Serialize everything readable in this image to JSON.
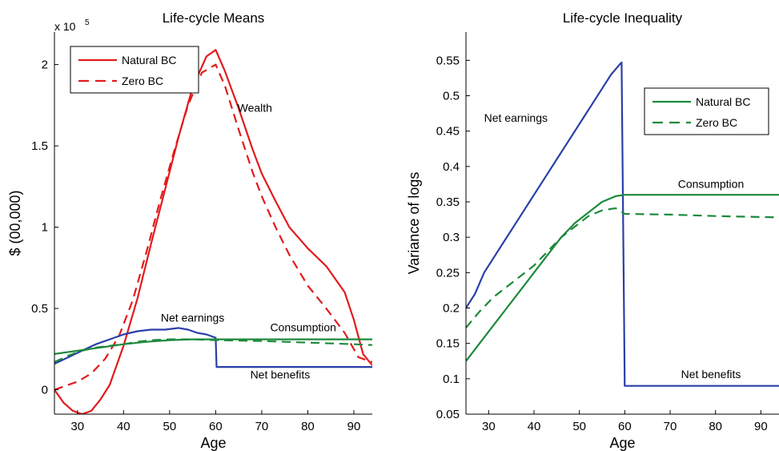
{
  "chart_data": [
    {
      "type": "line",
      "title": "Life-cycle Means",
      "xlabel": "Age",
      "ylabel": "$ (00,000)",
      "y_multiplier_label": "x 10",
      "y_multiplier_exp": "5",
      "xlim": [
        25,
        94
      ],
      "ylim": [
        -0.15,
        2.2
      ],
      "xticks": [
        30,
        40,
        50,
        60,
        70,
        80,
        90
      ],
      "yticks": [
        0,
        0.5,
        1,
        1.5,
        2
      ],
      "ytick_labels": [
        "0",
        "0.5",
        "1",
        "1.5",
        "2"
      ],
      "grid": false,
      "legend": {
        "placement": "top-left",
        "entries": [
          {
            "label": "Natural BC",
            "color": "#e31a1c",
            "dash": "solid"
          },
          {
            "label": "Zero BC",
            "color": "#e31a1c",
            "dash": "dashed"
          }
        ]
      },
      "annotations": [
        {
          "text": "Wealth",
          "x": 68.5,
          "y": 1.71
        },
        {
          "text": "Net earnings",
          "x": 55,
          "y": 0.42
        },
        {
          "text": "Consumption",
          "x": 79,
          "y": 0.36
        },
        {
          "text": "Net benefits",
          "x": 74,
          "y": 0.07
        }
      ],
      "series": [
        {
          "name": "Wealth",
          "color": "#e31a1c",
          "dash": "solid",
          "x": [
            25,
            27,
            29,
            31,
            33,
            35,
            37,
            40,
            43,
            46,
            49,
            52,
            55,
            58,
            60,
            62,
            65,
            68,
            70,
            73,
            76,
            80,
            84,
            88,
            90,
            92,
            94
          ],
          "y": [
            0,
            -0.08,
            -0.13,
            -0.15,
            -0.13,
            -0.06,
            0.03,
            0.27,
            0.56,
            0.9,
            1.23,
            1.56,
            1.86,
            2.05,
            2.09,
            1.96,
            1.73,
            1.48,
            1.33,
            1.16,
            1.0,
            0.87,
            0.76,
            0.6,
            0.43,
            0.22,
            0.15
          ]
        },
        {
          "name": "Wealth",
          "color": "#e31a1c",
          "dash": "dashed",
          "x": [
            25,
            27,
            30,
            33,
            36,
            39,
            42,
            45,
            48,
            51,
            54,
            57,
            60,
            62,
            65,
            68,
            70,
            73,
            76,
            80,
            84,
            88,
            91,
            94
          ],
          "y": [
            0,
            0.02,
            0.05,
            0.1,
            0.19,
            0.33,
            0.55,
            0.85,
            1.17,
            1.47,
            1.75,
            1.95,
            2.0,
            1.87,
            1.6,
            1.34,
            1.19,
            1.0,
            0.83,
            0.64,
            0.5,
            0.35,
            0.2,
            0.17
          ]
        },
        {
          "name": "Net earnings",
          "color": "#2b3fa8",
          "dash": "solid",
          "x": [
            25,
            28,
            31,
            34,
            37,
            40,
            43,
            46,
            49,
            52,
            54,
            56,
            58,
            60,
            60.2,
            94
          ],
          "y": [
            0.16,
            0.2,
            0.24,
            0.28,
            0.31,
            0.34,
            0.36,
            0.37,
            0.37,
            0.38,
            0.37,
            0.35,
            0.34,
            0.32,
            0.14,
            0.14
          ]
        },
        {
          "name": "Consumption",
          "color": "#1d8a3c",
          "dash": "solid",
          "x": [
            25,
            30,
            35,
            40,
            45,
            50,
            55,
            60,
            70,
            80,
            94
          ],
          "y": [
            0.22,
            0.24,
            0.26,
            0.28,
            0.295,
            0.305,
            0.31,
            0.31,
            0.31,
            0.31,
            0.31
          ]
        },
        {
          "name": "Consumption",
          "color": "#1d8a3c",
          "dash": "dashed",
          "x": [
            25,
            28,
            31,
            34,
            37,
            40,
            43,
            46,
            50,
            55,
            60,
            70,
            80,
            90,
            94
          ],
          "y": [
            0.17,
            0.21,
            0.24,
            0.26,
            0.27,
            0.28,
            0.295,
            0.305,
            0.31,
            0.31,
            0.305,
            0.3,
            0.29,
            0.28,
            0.275
          ]
        }
      ]
    },
    {
      "type": "line",
      "title": "Life-cycle Inequality",
      "xlabel": "Age",
      "ylabel": "Variance of logs",
      "xlim": [
        25,
        94
      ],
      "ylim": [
        0.05,
        0.59
      ],
      "xticks": [
        30,
        40,
        50,
        60,
        70,
        80,
        90
      ],
      "yticks": [
        0.05,
        0.1,
        0.15,
        0.2,
        0.25,
        0.3,
        0.35,
        0.4,
        0.45,
        0.5,
        0.55
      ],
      "ytick_labels": [
        "0.05",
        "0.1",
        "0.15",
        "0.2",
        "0.25",
        "0.3",
        "0.35",
        "0.4",
        "0.45",
        "0.5",
        "0.55"
      ],
      "grid": false,
      "legend": {
        "placement": "top-right",
        "entries": [
          {
            "label": "Natural BC",
            "color": "#1d8a3c",
            "dash": "solid"
          },
          {
            "label": "Zero BC",
            "color": "#1d8a3c",
            "dash": "dashed"
          }
        ]
      },
      "annotations": [
        {
          "text": "Net earnings",
          "x": 36,
          "y": 0.463
        },
        {
          "text": "Consumption",
          "x": 79,
          "y": 0.37
        },
        {
          "text": "Net benefits",
          "x": 79,
          "y": 0.101
        }
      ],
      "series": [
        {
          "name": "Net earnings",
          "color": "#2b3fa8",
          "dash": "solid",
          "x": [
            25,
            27,
            29,
            31,
            33,
            35,
            37,
            39,
            41,
            43,
            45,
            47,
            49,
            51,
            53,
            55,
            57,
            59,
            59.3,
            60,
            94
          ],
          "y": [
            0.2,
            0.22,
            0.25,
            0.27,
            0.29,
            0.31,
            0.33,
            0.35,
            0.37,
            0.39,
            0.41,
            0.43,
            0.45,
            0.47,
            0.49,
            0.51,
            0.53,
            0.545,
            0.547,
            0.09,
            0.09
          ]
        },
        {
          "name": "Consumption",
          "color": "#1d8a3c",
          "dash": "solid",
          "x": [
            25,
            28,
            31,
            34,
            37,
            40,
            43,
            46,
            49,
            52,
            55,
            58,
            60,
            70,
            80,
            94
          ],
          "y": [
            0.125,
            0.15,
            0.175,
            0.2,
            0.225,
            0.25,
            0.275,
            0.3,
            0.32,
            0.335,
            0.35,
            0.358,
            0.36,
            0.36,
            0.36,
            0.36
          ]
        },
        {
          "name": "Consumption",
          "color": "#1d8a3c",
          "dash": "dashed",
          "x": [
            25,
            26,
            28,
            31,
            34,
            37,
            40,
            43,
            46,
            49,
            52,
            55,
            58,
            60,
            70,
            80,
            94
          ],
          "y": [
            0.172,
            0.18,
            0.195,
            0.215,
            0.23,
            0.245,
            0.26,
            0.28,
            0.3,
            0.315,
            0.33,
            0.338,
            0.341,
            0.333,
            0.332,
            0.33,
            0.328
          ]
        }
      ]
    }
  ]
}
